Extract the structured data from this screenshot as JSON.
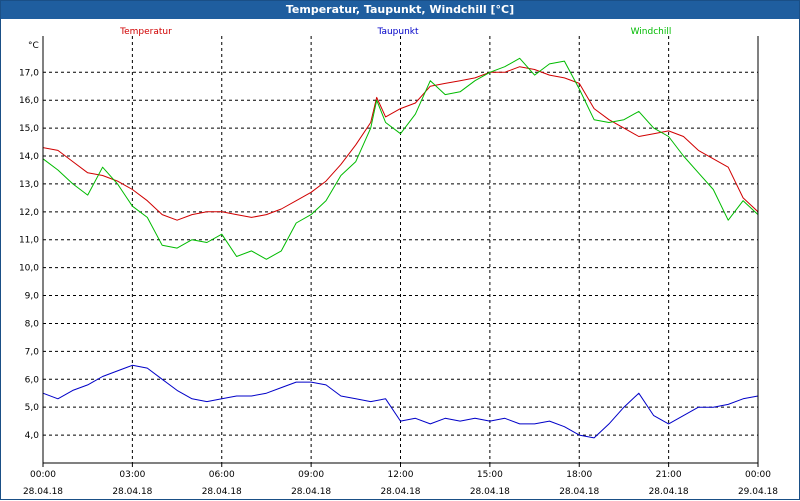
{
  "window": {
    "title": "Temperatur, Taupunkt, Windchill [°C]"
  },
  "colors": {
    "temperature": "#d00000",
    "dewpoint": "#0000c8",
    "windchill": "#00bb00",
    "grid": "#000000",
    "titlebar": "#1f5e9f"
  },
  "chart_data": {
    "type": "line",
    "title": "Temperatur, Taupunkt, Windchill [°C]",
    "ylabel": "°C",
    "xlabel": "",
    "ylim": [
      3.0,
      18.3
    ],
    "xlim": [
      0,
      24
    ],
    "grid": true,
    "yticks": [
      4.0,
      5.0,
      6.0,
      7.0,
      8.0,
      9.0,
      10.0,
      11.0,
      12.0,
      13.0,
      14.0,
      15.0,
      16.0,
      17.0
    ],
    "ytick_labels": [
      "4,0",
      "5,0",
      "6,0",
      "7,0",
      "8,0",
      "9,0",
      "10,0",
      "11,0",
      "12,0",
      "13,0",
      "14,0",
      "15,0",
      "16,0",
      "17,0"
    ],
    "xticks": [
      0,
      3,
      6,
      9,
      12,
      15,
      18,
      21,
      24
    ],
    "xtick_labels": [
      "00:00",
      "03:00",
      "06:00",
      "09:00",
      "12:00",
      "15:00",
      "18:00",
      "21:00",
      "00:00"
    ],
    "xtick_dates": [
      "28.04.18",
      "28.04.18",
      "28.04.18",
      "28.04.18",
      "28.04.18",
      "28.04.18",
      "28.04.18",
      "28.04.18",
      "29.04.18"
    ],
    "series": [
      {
        "name": "Temperatur",
        "color": "#d00000",
        "x": [
          0,
          0.5,
          1,
          1.5,
          2,
          2.5,
          3,
          3.5,
          4,
          4.5,
          5,
          5.5,
          6,
          6.5,
          7,
          7.5,
          8,
          8.5,
          9,
          9.5,
          10,
          10.5,
          11,
          11.2,
          11.5,
          12,
          12.5,
          13,
          13.5,
          14,
          14.5,
          15,
          15.5,
          16,
          16.5,
          17,
          17.5,
          18,
          18.5,
          19,
          19.5,
          20,
          20.5,
          21,
          21.5,
          22,
          22.5,
          23,
          23.5,
          24
        ],
        "values": [
          14.3,
          14.2,
          13.8,
          13.4,
          13.3,
          13.1,
          12.8,
          12.4,
          11.9,
          11.7,
          11.9,
          12.0,
          12.0,
          11.9,
          11.8,
          11.9,
          12.1,
          12.4,
          12.7,
          13.1,
          13.7,
          14.4,
          15.2,
          16.1,
          15.4,
          15.7,
          15.9,
          16.5,
          16.6,
          16.7,
          16.8,
          17.0,
          17.0,
          17.2,
          17.1,
          16.9,
          16.8,
          16.6,
          15.7,
          15.3,
          15.0,
          14.7,
          14.8,
          14.9,
          14.7,
          14.2,
          13.9,
          13.6,
          12.5,
          12.0
        ]
      },
      {
        "name": "Taupunkt",
        "color": "#0000c8",
        "x": [
          0,
          0.5,
          1,
          1.5,
          2,
          2.5,
          3,
          3.5,
          4,
          4.5,
          5,
          5.5,
          6,
          6.5,
          7,
          7.5,
          8,
          8.5,
          9,
          9.5,
          10,
          10.5,
          11,
          11.5,
          12,
          12.5,
          13,
          13.5,
          14,
          14.5,
          15,
          15.5,
          16,
          16.5,
          17,
          17.5,
          18,
          18.5,
          19,
          19.5,
          20,
          20.5,
          21,
          21.5,
          22,
          22.5,
          23,
          23.5,
          24
        ],
        "values": [
          5.5,
          5.3,
          5.6,
          5.8,
          6.1,
          6.3,
          6.5,
          6.4,
          6.0,
          5.6,
          5.3,
          5.2,
          5.3,
          5.4,
          5.4,
          5.5,
          5.7,
          5.9,
          5.9,
          5.8,
          5.4,
          5.3,
          5.2,
          5.3,
          4.5,
          4.6,
          4.4,
          4.6,
          4.5,
          4.6,
          4.5,
          4.6,
          4.4,
          4.4,
          4.5,
          4.3,
          4.0,
          3.9,
          4.4,
          5.0,
          5.5,
          4.7,
          4.4,
          4.7,
          5.0,
          5.0,
          5.1,
          5.3,
          5.4
        ]
      },
      {
        "name": "Windchill",
        "color": "#00bb00",
        "x": [
          0,
          0.5,
          1,
          1.5,
          2,
          2.5,
          3,
          3.5,
          4,
          4.5,
          5,
          5.5,
          6,
          6.5,
          7,
          7.5,
          8,
          8.5,
          9,
          9.5,
          10,
          10.5,
          11,
          11.2,
          11.5,
          12,
          12.5,
          13,
          13.5,
          14,
          14.5,
          15,
          15.5,
          16,
          16.5,
          17,
          17.5,
          18,
          18.5,
          19,
          19.5,
          20,
          20.5,
          21,
          21.5,
          22,
          22.5,
          23,
          23.5,
          24
        ],
        "values": [
          13.9,
          13.5,
          13.0,
          12.6,
          13.6,
          13.0,
          12.2,
          11.8,
          10.8,
          10.7,
          11.0,
          10.9,
          11.2,
          10.4,
          10.6,
          10.3,
          10.6,
          11.6,
          11.9,
          12.4,
          13.3,
          13.8,
          15.0,
          16.0,
          15.2,
          14.8,
          15.5,
          16.7,
          16.2,
          16.3,
          16.7,
          17.0,
          17.2,
          17.5,
          16.9,
          17.3,
          17.4,
          16.4,
          15.3,
          15.2,
          15.3,
          15.6,
          15.0,
          14.7,
          14.0,
          13.4,
          12.8,
          11.7,
          12.4,
          11.9
        ]
      }
    ]
  }
}
